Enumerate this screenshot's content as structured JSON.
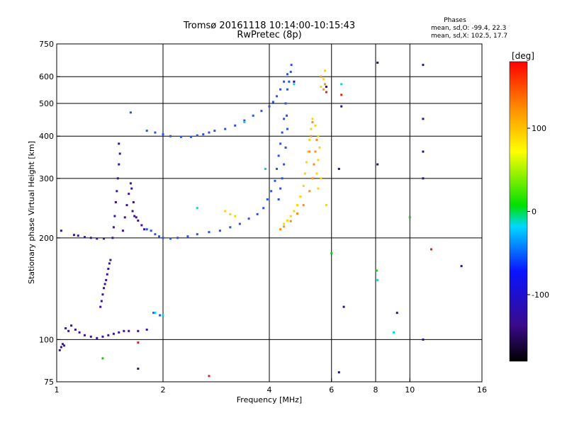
{
  "chart_data": {
    "type": "scatter",
    "title": "Tromsø 20161118 10:14:00-10:15:43",
    "subtitle": "RwPretec (8p)",
    "phases_box": {
      "title": "Phases",
      "line_o": "mean, sd,O: -99.4, 22.3",
      "line_x": "mean, sd,X: 102.5, 17.7"
    },
    "xlabel": "Frequency [MHz]",
    "ylabel": "Stationary phase Virtual Height [km]",
    "x_scale": "log",
    "y_scale": "log",
    "xlim": [
      1,
      16
    ],
    "ylim": [
      75,
      750
    ],
    "x_ticks": [
      1,
      2,
      4,
      6,
      8,
      10,
      16
    ],
    "y_ticks": [
      75,
      100,
      200,
      300,
      400,
      500,
      600,
      750
    ],
    "x_gridlines": [
      2,
      4,
      6,
      8,
      10
    ],
    "y_gridlines": [
      100,
      200,
      300,
      400,
      500,
      600
    ],
    "grid": true,
    "colorbar": {
      "label": "[deg]",
      "range": [
        -180,
        180
      ],
      "ticks": [
        100,
        0,
        -100
      ]
    },
    "series": [
      {
        "color": "#3a10a0",
        "phase_deg": -155,
        "points": [
          [
            1.02,
            93
          ],
          [
            1.03,
            95
          ],
          [
            1.04,
            97
          ],
          [
            1.05,
            96
          ],
          [
            1.03,
            210
          ],
          [
            1.06,
            108
          ],
          [
            1.08,
            106
          ],
          [
            1.1,
            110
          ],
          [
            1.13,
            107
          ],
          [
            1.16,
            105
          ],
          [
            1.2,
            103
          ],
          [
            1.25,
            102
          ],
          [
            1.3,
            101
          ],
          [
            1.35,
            102
          ],
          [
            1.4,
            103
          ],
          [
            1.45,
            104
          ],
          [
            1.5,
            105
          ],
          [
            1.55,
            106
          ],
          [
            1.6,
            106
          ],
          [
            1.7,
            106
          ],
          [
            1.8,
            107
          ],
          [
            1.12,
            204
          ],
          [
            1.15,
            203
          ],
          [
            1.2,
            201
          ],
          [
            1.25,
            200
          ],
          [
            1.3,
            199
          ],
          [
            1.36,
            199
          ],
          [
            1.33,
            125
          ],
          [
            1.34,
            130
          ],
          [
            1.35,
            136
          ],
          [
            1.36,
            142
          ],
          [
            1.37,
            146
          ],
          [
            1.38,
            150
          ],
          [
            1.39,
            156
          ],
          [
            1.4,
            162
          ],
          [
            1.41,
            168
          ],
          [
            1.42,
            172
          ],
          [
            1.44,
            200
          ],
          [
            1.45,
            215
          ],
          [
            1.46,
            232
          ],
          [
            1.47,
            255
          ],
          [
            1.48,
            275
          ],
          [
            1.49,
            300
          ],
          [
            1.5,
            330
          ],
          [
            1.51,
            355
          ],
          [
            1.5,
            380
          ],
          [
            1.54,
            210
          ],
          [
            1.56,
            230
          ],
          [
            1.58,
            250
          ],
          [
            1.6,
            270
          ],
          [
            1.62,
            290
          ],
          [
            1.63,
            280
          ],
          [
            1.65,
            255
          ],
          [
            1.64,
            240
          ],
          [
            1.66,
            232
          ],
          [
            1.68,
            230
          ],
          [
            1.7,
            225
          ],
          [
            1.74,
            218
          ],
          [
            1.77,
            212
          ]
        ]
      },
      {
        "color": "#2a50e8",
        "phase_deg": -105,
        "points": [
          [
            1.8,
            212
          ],
          [
            1.85,
            210
          ],
          [
            1.9,
            205
          ],
          [
            1.95,
            202
          ],
          [
            2.0,
            200
          ],
          [
            2.1,
            199
          ],
          [
            2.2,
            200
          ],
          [
            2.35,
            202
          ],
          [
            2.5,
            205
          ],
          [
            2.7,
            208
          ],
          [
            2.9,
            210
          ],
          [
            3.1,
            215
          ],
          [
            3.3,
            220
          ],
          [
            3.5,
            228
          ],
          [
            3.7,
            235
          ],
          [
            3.85,
            245
          ],
          [
            3.95,
            260
          ],
          [
            4.05,
            275
          ],
          [
            4.15,
            295
          ],
          [
            4.2,
            320
          ],
          [
            4.25,
            350
          ],
          [
            4.3,
            380
          ],
          [
            4.35,
            410
          ],
          [
            4.4,
            450
          ],
          [
            4.45,
            500
          ],
          [
            4.5,
            550
          ],
          [
            4.55,
            580
          ],
          [
            4.6,
            620
          ],
          [
            4.62,
            650
          ],
          [
            4.25,
            260
          ],
          [
            4.3,
            280
          ],
          [
            4.35,
            300
          ],
          [
            4.4,
            330
          ],
          [
            4.45,
            370
          ],
          [
            4.5,
            420
          ],
          [
            4.48,
            460
          ],
          [
            1.8,
            415
          ],
          [
            1.9,
            410
          ],
          [
            2.0,
            405
          ],
          [
            2.1,
            400
          ],
          [
            2.25,
            398
          ],
          [
            2.4,
            398
          ],
          [
            2.5,
            402
          ],
          [
            2.6,
            405
          ],
          [
            2.7,
            410
          ],
          [
            2.8,
            415
          ],
          [
            3.0,
            420
          ],
          [
            3.2,
            430
          ],
          [
            3.4,
            445
          ],
          [
            3.6,
            460
          ],
          [
            3.8,
            475
          ],
          [
            4.0,
            490
          ],
          [
            4.1,
            505
          ],
          [
            4.2,
            525
          ],
          [
            4.3,
            550
          ],
          [
            4.4,
            580
          ],
          [
            4.5,
            610
          ],
          [
            1.62,
            470
          ],
          [
            1.88,
            120
          ],
          [
            1.96,
            118
          ]
        ]
      },
      {
        "color": "#ffd400",
        "phase_deg": 100,
        "points": [
          [
            4.4,
            220
          ],
          [
            4.5,
            225
          ],
          [
            4.6,
            232
          ],
          [
            4.7,
            240
          ],
          [
            4.8,
            250
          ],
          [
            4.9,
            265
          ],
          [
            5.0,
            285
          ],
          [
            5.05,
            310
          ],
          [
            5.1,
            335
          ],
          [
            5.15,
            360
          ],
          [
            5.2,
            390
          ],
          [
            5.25,
            420
          ],
          [
            5.3,
            450
          ],
          [
            5.4,
            430
          ],
          [
            5.5,
            400
          ],
          [
            5.55,
            370
          ],
          [
            5.5,
            340
          ],
          [
            5.45,
            310
          ],
          [
            5.5,
            280
          ],
          [
            5.6,
            560
          ],
          [
            5.7,
            590
          ],
          [
            5.75,
            625
          ],
          [
            3.0,
            240
          ],
          [
            3.1,
            235
          ],
          [
            3.2,
            232
          ],
          [
            5.6,
            300
          ],
          [
            5.8,
            250
          ]
        ]
      },
      {
        "color": "#ff8c1a",
        "phase_deg": 130,
        "points": [
          [
            4.3,
            212
          ],
          [
            4.4,
            216
          ],
          [
            4.6,
            224
          ],
          [
            4.8,
            236
          ],
          [
            5.0,
            250
          ],
          [
            5.2,
            275
          ],
          [
            5.3,
            300
          ],
          [
            5.35,
            330
          ],
          [
            5.4,
            360
          ],
          [
            5.45,
            390
          ],
          [
            5.7,
            550
          ],
          [
            5.75,
            570
          ],
          [
            5.2,
            360
          ],
          [
            5.25,
            400
          ],
          [
            5.3,
            440
          ],
          [
            5.6,
            600
          ]
        ]
      },
      {
        "color": "#00d8e0",
        "phase_deg": 20,
        "points": [
          [
            1.9,
            120
          ],
          [
            2.0,
            118
          ],
          [
            2.5,
            245
          ],
          [
            3.4,
            440
          ],
          [
            4.7,
            570
          ],
          [
            8.1,
            150
          ],
          [
            9.0,
            105
          ],
          [
            3.9,
            320
          ],
          [
            6.4,
            570
          ]
        ]
      },
      {
        "color": "#1fbf1f",
        "phase_deg": -20,
        "points": [
          [
            1.35,
            88
          ],
          [
            6.0,
            180
          ],
          [
            8.05,
            160
          ],
          [
            10.0,
            230
          ]
        ]
      },
      {
        "color": "#e02020",
        "phase_deg": 170,
        "points": [
          [
            5.8,
            540
          ],
          [
            6.4,
            530
          ],
          [
            11.5,
            185
          ],
          [
            1.7,
            98
          ],
          [
            2.7,
            78
          ]
        ]
      },
      {
        "color": "#1a1a80",
        "phase_deg": -130,
        "points": [
          [
            6.3,
            320
          ],
          [
            6.5,
            125
          ],
          [
            8.1,
            660
          ],
          [
            8.1,
            330
          ],
          [
            9.2,
            120
          ],
          [
            10.9,
            450
          ],
          [
            10.9,
            360
          ],
          [
            10.9,
            300
          ],
          [
            10.9,
            100
          ],
          [
            10.9,
            650
          ],
          [
            6.3,
            80
          ],
          [
            6.4,
            490
          ],
          [
            14.0,
            165
          ],
          [
            5.8,
            560
          ],
          [
            1.7,
            82
          ],
          [
            4.7,
            580
          ]
        ]
      }
    ]
  }
}
